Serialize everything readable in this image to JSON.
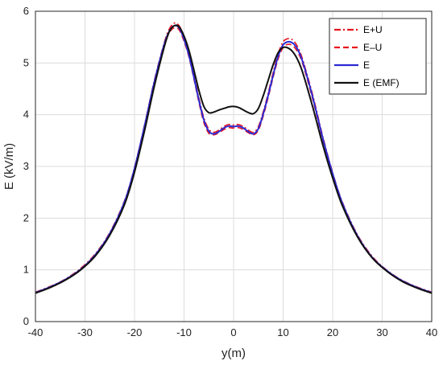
{
  "chart_data": {
    "type": "line",
    "title": "",
    "xlabel": "y(m)",
    "ylabel": "E (kV/m)",
    "xlim": [
      -40,
      40
    ],
    "ylim": [
      0,
      6
    ],
    "xticks": [
      -40,
      -30,
      -20,
      -10,
      0,
      10,
      20,
      30,
      40
    ],
    "yticks": [
      0,
      1,
      2,
      3,
      4,
      5,
      6
    ],
    "grid": true,
    "legend_position": "top-right",
    "x": [
      -40,
      -37,
      -34,
      -31,
      -28,
      -25,
      -22,
      -20,
      -18,
      -16,
      -14,
      -13,
      -12,
      -11,
      -10,
      -9,
      -8,
      -7,
      -6,
      -5,
      -4,
      -3,
      -2,
      -1,
      0,
      1,
      2,
      3,
      4,
      5,
      6,
      7,
      8,
      9,
      10,
      11,
      12,
      13,
      14,
      16,
      18,
      20,
      22,
      25,
      28,
      31,
      34,
      37,
      40
    ],
    "series": [
      {
        "name": "E+U",
        "color": "#e8141e",
        "style": "dashdot",
        "values": [
          0.57,
          0.68,
          0.82,
          1.02,
          1.3,
          1.72,
          2.34,
          2.98,
          3.79,
          4.66,
          5.39,
          5.65,
          5.77,
          5.72,
          5.5,
          5.18,
          4.76,
          4.32,
          3.94,
          3.72,
          3.66,
          3.7,
          3.77,
          3.81,
          3.8,
          3.81,
          3.77,
          3.7,
          3.66,
          3.77,
          4.06,
          4.42,
          4.82,
          5.18,
          5.41,
          5.47,
          5.44,
          5.3,
          5.05,
          4.37,
          3.58,
          2.88,
          2.3,
          1.68,
          1.26,
          0.99,
          0.8,
          0.67,
          0.57
        ]
      },
      {
        "name": "E–U",
        "color": "#e8141e",
        "style": "dashed",
        "values": [
          0.55,
          0.66,
          0.8,
          0.99,
          1.27,
          1.69,
          2.31,
          2.95,
          3.75,
          4.61,
          5.33,
          5.58,
          5.68,
          5.64,
          5.42,
          5.11,
          4.69,
          4.24,
          3.85,
          3.64,
          3.61,
          3.65,
          3.71,
          3.75,
          3.74,
          3.75,
          3.71,
          3.65,
          3.61,
          3.7,
          3.98,
          4.34,
          4.73,
          5.08,
          5.3,
          5.36,
          5.33,
          5.2,
          4.97,
          4.29,
          3.52,
          2.84,
          2.27,
          1.65,
          1.23,
          0.97,
          0.78,
          0.65,
          0.55
        ]
      },
      {
        "name": "E",
        "color": "#2a2ad4",
        "style": "solid",
        "values": [
          0.56,
          0.67,
          0.81,
          1.0,
          1.28,
          1.7,
          2.32,
          2.96,
          3.77,
          4.63,
          5.36,
          5.61,
          5.72,
          5.68,
          5.46,
          5.14,
          4.72,
          4.28,
          3.9,
          3.68,
          3.63,
          3.67,
          3.74,
          3.78,
          3.77,
          3.78,
          3.74,
          3.67,
          3.63,
          3.73,
          4.02,
          4.38,
          4.77,
          5.13,
          5.35,
          5.41,
          5.38,
          5.25,
          5.01,
          4.33,
          3.55,
          2.86,
          2.28,
          1.66,
          1.24,
          0.98,
          0.79,
          0.66,
          0.56
        ]
      },
      {
        "name": "E (EMF)",
        "color": "#111111",
        "style": "solid",
        "values": [
          0.55,
          0.66,
          0.8,
          0.99,
          1.26,
          1.67,
          2.27,
          2.89,
          3.68,
          4.55,
          5.31,
          5.6,
          5.72,
          5.7,
          5.52,
          5.24,
          4.86,
          4.47,
          4.16,
          4.04,
          4.05,
          4.09,
          4.12,
          4.15,
          4.16,
          4.14,
          4.09,
          4.04,
          4.02,
          4.12,
          4.37,
          4.67,
          4.97,
          5.2,
          5.3,
          5.29,
          5.21,
          5.05,
          4.8,
          4.14,
          3.42,
          2.78,
          2.23,
          1.64,
          1.23,
          0.97,
          0.78,
          0.65,
          0.55
        ]
      }
    ]
  }
}
